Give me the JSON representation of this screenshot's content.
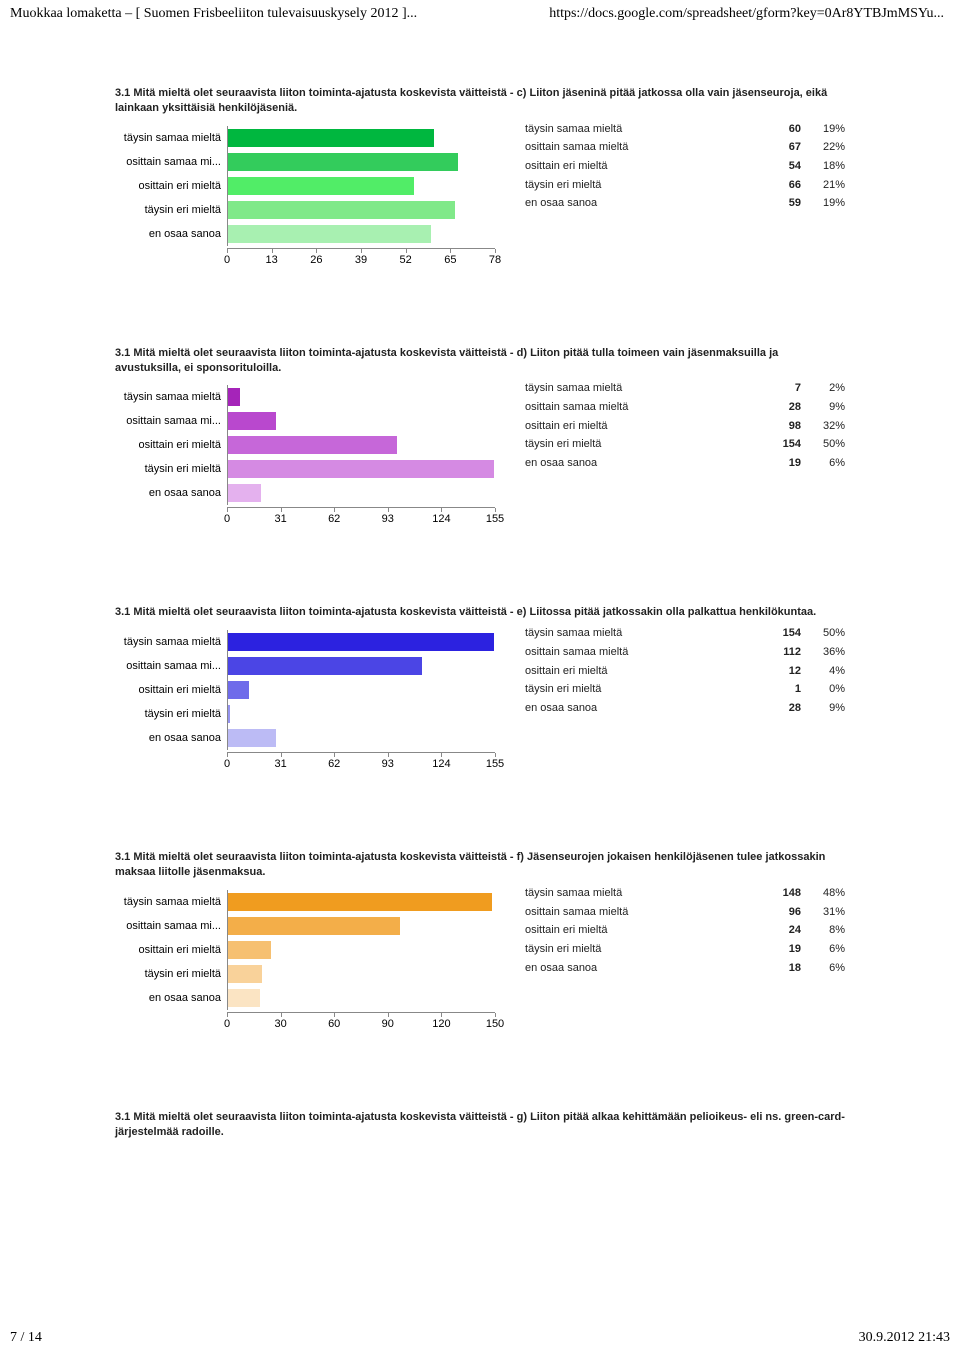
{
  "header": {
    "left": "Muokkaa lomaketta – [ Suomen Frisbeeliiton tulevaisuuskysely 2012 ]...",
    "right": "https://docs.google.com/spreadsheet/gform?key=0Ar8YTBJmMSYu..."
  },
  "footer": {
    "left": "7 / 14",
    "right": "30.9.2012 21:43"
  },
  "categories": [
    "täysin samaa mieltä",
    "osittain samaa mi...",
    "osittain eri mieltä",
    "täysin eri mieltä",
    "en osaa sanoa"
  ],
  "row_labels": [
    "täysin samaa mieltä",
    "osittain samaa mieltä",
    "osittain eri mieltä",
    "täysin eri mieltä",
    "en osaa sanoa"
  ],
  "sections": [
    {
      "title": "3.1 Mitä mieltä olet seuraavista liiton toiminta-ajatusta koskevista väitteistä - c) Liiton jäseninä pitää jatkossa olla vain jäsenseuroja, eikä lainkaan yksittäisiä henkilöjäseniä.",
      "chart": {
        "type": "bar",
        "values": [
          60,
          67,
          54,
          66,
          59
        ],
        "bar_colors": [
          "#00b73f",
          "#33cc5c",
          "#51ed67",
          "#80e989",
          "#a8f0b1"
        ],
        "xmax": 78,
        "ticks": [
          0,
          13,
          26,
          39,
          52,
          65,
          78
        ],
        "background_color": "#ffffff",
        "axis_color": "#888888",
        "label_fontsize": 11
      },
      "data": [
        {
          "count": 60,
          "pct": "19%"
        },
        {
          "count": 67,
          "pct": "22%"
        },
        {
          "count": 54,
          "pct": "18%"
        },
        {
          "count": 66,
          "pct": "21%"
        },
        {
          "count": 59,
          "pct": "19%"
        }
      ]
    },
    {
      "title": "3.1 Mitä mieltä olet seuraavista liiton toiminta-ajatusta koskevista väitteistä - d) Liiton pitää tulla toimeen vain jäsenmaksuilla ja avustuksilla, ei sponsorituloilla.",
      "chart": {
        "type": "bar",
        "values": [
          7,
          28,
          98,
          154,
          19
        ],
        "bar_colors": [
          "#a524b9",
          "#b948ce",
          "#c667d9",
          "#d58ae3",
          "#e4b1ee"
        ],
        "xmax": 155,
        "ticks": [
          0,
          31,
          62,
          93,
          124,
          155
        ],
        "background_color": "#ffffff",
        "axis_color": "#888888",
        "label_fontsize": 11
      },
      "data": [
        {
          "count": 7,
          "pct": "2%"
        },
        {
          "count": 28,
          "pct": "9%"
        },
        {
          "count": 98,
          "pct": "32%"
        },
        {
          "count": 154,
          "pct": "50%"
        },
        {
          "count": 19,
          "pct": "6%"
        }
      ]
    },
    {
      "title": "3.1 Mitä mieltä olet seuraavista liiton toiminta-ajatusta koskevista väitteistä - e) Liitossa pitää jatkossakin olla palkattua henkilökuntaa.",
      "chart": {
        "type": "bar",
        "values": [
          154,
          112,
          12,
          1,
          28
        ],
        "bar_colors": [
          "#2c22e0",
          "#4b45e5",
          "#6f6bea",
          "#9593ef",
          "#bcbbf5"
        ],
        "xmax": 155,
        "ticks": [
          0,
          31,
          62,
          93,
          124,
          155
        ],
        "background_color": "#ffffff",
        "axis_color": "#888888",
        "label_fontsize": 11
      },
      "data": [
        {
          "count": 154,
          "pct": "50%"
        },
        {
          "count": 112,
          "pct": "36%"
        },
        {
          "count": 12,
          "pct": "4%"
        },
        {
          "count": 1,
          "pct": "0%"
        },
        {
          "count": 28,
          "pct": "9%"
        }
      ]
    },
    {
      "title": "3.1 Mitä mieltä olet seuraavista liiton toiminta-ajatusta koskevista väitteistä - f) Jäsenseurojen jokaisen henkilöjäsenen tulee jatkossakin maksaa liitolle jäsenmaksua.",
      "chart": {
        "type": "bar",
        "values": [
          148,
          96,
          24,
          19,
          18
        ],
        "bar_colors": [
          "#f09c1f",
          "#f3ae49",
          "#f6c071",
          "#f9d29a",
          "#fbe4c3"
        ],
        "xmax": 150,
        "ticks": [
          0,
          30,
          60,
          90,
          120,
          150
        ],
        "background_color": "#ffffff",
        "axis_color": "#888888",
        "label_fontsize": 11
      },
      "data": [
        {
          "count": 148,
          "pct": "48%"
        },
        {
          "count": 96,
          "pct": "31%"
        },
        {
          "count": 24,
          "pct": "8%"
        },
        {
          "count": 19,
          "pct": "6%"
        },
        {
          "count": 18,
          "pct": "6%"
        }
      ]
    },
    {
      "title": "3.1 Mitä mieltä olet seuraavista liiton toiminta-ajatusta koskevista väitteistä - g) Liiton pitää alkaa kehittämään pelioikeus- eli ns. green-card-järjestelmää radoille.",
      "chart": null,
      "data": null
    }
  ]
}
